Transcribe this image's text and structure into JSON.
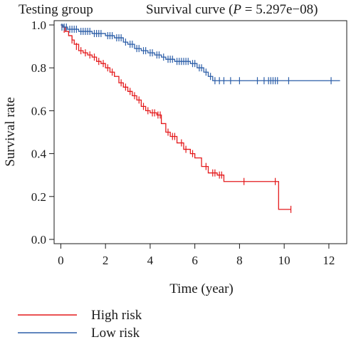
{
  "chart_data": {
    "type": "line",
    "title_left": "Testing group",
    "title_right_prefix": "Survival curve (",
    "title_p_symbol": "P",
    "title_right_suffix": " = 5.297e−08)",
    "xlabel": "Time (year)",
    "ylabel": "Survival rate",
    "xlim": [
      -0.3,
      12.8
    ],
    "ylim": [
      -0.02,
      1.02
    ],
    "x_ticks": [
      0,
      2,
      4,
      6,
      8,
      10,
      12
    ],
    "x_tick_labels": [
      "0",
      "2",
      "4",
      "6",
      "8",
      "10",
      "12"
    ],
    "y_ticks": [
      0.0,
      0.2,
      0.4,
      0.6,
      0.8,
      1.0
    ],
    "y_tick_labels": [
      "0.0",
      "0.2",
      "0.4",
      "0.6",
      "0.8",
      "1.0"
    ],
    "legend_position": "bottom-left",
    "series": [
      {
        "name": "High risk",
        "color": "#e41a1c",
        "steps": [
          [
            0,
            1.0
          ],
          [
            0.05,
            0.99
          ],
          [
            0.2,
            0.97
          ],
          [
            0.35,
            0.95
          ],
          [
            0.5,
            0.93
          ],
          [
            0.6,
            0.91
          ],
          [
            0.8,
            0.88
          ],
          [
            1.0,
            0.87
          ],
          [
            1.2,
            0.86
          ],
          [
            1.4,
            0.85
          ],
          [
            1.6,
            0.83
          ],
          [
            1.8,
            0.82
          ],
          [
            2.0,
            0.8
          ],
          [
            2.2,
            0.78
          ],
          [
            2.4,
            0.76
          ],
          [
            2.6,
            0.73
          ],
          [
            2.8,
            0.71
          ],
          [
            3.0,
            0.69
          ],
          [
            3.2,
            0.67
          ],
          [
            3.4,
            0.65
          ],
          [
            3.6,
            0.62
          ],
          [
            3.8,
            0.6
          ],
          [
            4.0,
            0.59
          ],
          [
            4.3,
            0.58
          ],
          [
            4.5,
            0.54
          ],
          [
            4.7,
            0.5
          ],
          [
            4.9,
            0.48
          ],
          [
            5.2,
            0.45
          ],
          [
            5.5,
            0.42
          ],
          [
            5.8,
            0.4
          ],
          [
            6.0,
            0.38
          ],
          [
            6.3,
            0.34
          ],
          [
            6.6,
            0.31
          ],
          [
            7.0,
            0.3
          ],
          [
            7.3,
            0.27
          ],
          [
            9.7,
            0.27
          ],
          [
            9.75,
            0.14
          ],
          [
            10.3,
            0.14
          ]
        ],
        "censored": [
          [
            0.15,
            0.98
          ],
          [
            0.5,
            0.93
          ],
          [
            0.7,
            0.9
          ],
          [
            0.9,
            0.88
          ],
          [
            1.1,
            0.87
          ],
          [
            1.3,
            0.86
          ],
          [
            1.5,
            0.85
          ],
          [
            1.7,
            0.83
          ],
          [
            1.9,
            0.82
          ],
          [
            2.1,
            0.8
          ],
          [
            2.3,
            0.78
          ],
          [
            2.7,
            0.73
          ],
          [
            2.9,
            0.71
          ],
          [
            3.1,
            0.69
          ],
          [
            3.3,
            0.67
          ],
          [
            3.5,
            0.65
          ],
          [
            3.7,
            0.62
          ],
          [
            3.9,
            0.6
          ],
          [
            4.1,
            0.59
          ],
          [
            4.2,
            0.59
          ],
          [
            4.35,
            0.58
          ],
          [
            4.45,
            0.58
          ],
          [
            4.8,
            0.5
          ],
          [
            5.0,
            0.48
          ],
          [
            5.1,
            0.48
          ],
          [
            5.4,
            0.45
          ],
          [
            5.6,
            0.42
          ],
          [
            5.9,
            0.4
          ],
          [
            6.5,
            0.34
          ],
          [
            6.8,
            0.31
          ],
          [
            6.9,
            0.31
          ],
          [
            7.1,
            0.3
          ],
          [
            7.2,
            0.3
          ],
          [
            8.2,
            0.27
          ],
          [
            9.6,
            0.27
          ],
          [
            10.3,
            0.14
          ]
        ]
      },
      {
        "name": "Low risk",
        "color": "#2c5ea8",
        "steps": [
          [
            0,
            1.0
          ],
          [
            0.1,
            0.99
          ],
          [
            0.3,
            0.98
          ],
          [
            0.8,
            0.97
          ],
          [
            1.4,
            0.96
          ],
          [
            2.0,
            0.95
          ],
          [
            2.4,
            0.94
          ],
          [
            2.8,
            0.92
          ],
          [
            3.0,
            0.91
          ],
          [
            3.3,
            0.89
          ],
          [
            3.6,
            0.88
          ],
          [
            3.9,
            0.87
          ],
          [
            4.2,
            0.86
          ],
          [
            4.5,
            0.85
          ],
          [
            4.7,
            0.84
          ],
          [
            5.1,
            0.83
          ],
          [
            5.8,
            0.82
          ],
          [
            6.1,
            0.8
          ],
          [
            6.4,
            0.78
          ],
          [
            6.6,
            0.76
          ],
          [
            6.8,
            0.74
          ],
          [
            12.5,
            0.74
          ]
        ],
        "censored": [
          [
            0.05,
            0.99
          ],
          [
            0.15,
            0.99
          ],
          [
            0.25,
            0.99
          ],
          [
            0.4,
            0.98
          ],
          [
            0.5,
            0.98
          ],
          [
            0.6,
            0.98
          ],
          [
            0.7,
            0.98
          ],
          [
            0.9,
            0.97
          ],
          [
            1.0,
            0.97
          ],
          [
            1.1,
            0.97
          ],
          [
            1.2,
            0.97
          ],
          [
            1.3,
            0.97
          ],
          [
            1.5,
            0.96
          ],
          [
            1.6,
            0.96
          ],
          [
            1.7,
            0.96
          ],
          [
            1.8,
            0.96
          ],
          [
            2.1,
            0.95
          ],
          [
            2.2,
            0.95
          ],
          [
            2.3,
            0.95
          ],
          [
            2.5,
            0.94
          ],
          [
            2.6,
            0.94
          ],
          [
            2.7,
            0.94
          ],
          [
            2.9,
            0.92
          ],
          [
            3.1,
            0.91
          ],
          [
            3.2,
            0.91
          ],
          [
            3.4,
            0.89
          ],
          [
            3.5,
            0.89
          ],
          [
            3.7,
            0.88
          ],
          [
            3.8,
            0.88
          ],
          [
            4.0,
            0.87
          ],
          [
            4.1,
            0.87
          ],
          [
            4.3,
            0.86
          ],
          [
            4.4,
            0.86
          ],
          [
            4.6,
            0.85
          ],
          [
            4.8,
            0.84
          ],
          [
            4.9,
            0.84
          ],
          [
            5.0,
            0.84
          ],
          [
            5.2,
            0.83
          ],
          [
            5.3,
            0.83
          ],
          [
            5.4,
            0.83
          ],
          [
            5.5,
            0.83
          ],
          [
            5.6,
            0.83
          ],
          [
            5.7,
            0.83
          ],
          [
            5.9,
            0.82
          ],
          [
            6.0,
            0.82
          ],
          [
            6.2,
            0.8
          ],
          [
            6.3,
            0.8
          ],
          [
            6.5,
            0.78
          ],
          [
            6.7,
            0.76
          ],
          [
            6.9,
            0.74
          ],
          [
            7.1,
            0.74
          ],
          [
            7.3,
            0.74
          ],
          [
            7.6,
            0.74
          ],
          [
            8.0,
            0.74
          ],
          [
            8.8,
            0.74
          ],
          [
            9.1,
            0.74
          ],
          [
            9.3,
            0.74
          ],
          [
            9.4,
            0.74
          ],
          [
            9.5,
            0.74
          ],
          [
            9.6,
            0.74
          ],
          [
            9.7,
            0.74
          ],
          [
            10.2,
            0.74
          ],
          [
            12.1,
            0.74
          ]
        ]
      }
    ]
  }
}
